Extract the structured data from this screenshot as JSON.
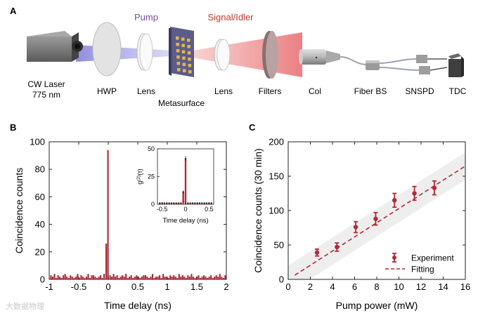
{
  "panels": {
    "a": "A",
    "b": "B",
    "c": "C"
  },
  "setup": {
    "pump": "Pump",
    "signal_idler": "Signal/Idler",
    "laser_line1": "CW Laser",
    "laser_line2": "775 nm",
    "hwp": "HWP",
    "lens1": "Lens",
    "metasurface": "Metasurface",
    "lens2": "Lens",
    "filters": "Filters",
    "col": "Col",
    "fiber_bs": "Fiber BS",
    "snspd": "SNSPD",
    "tdc": "TDC",
    "colors": {
      "pump_label": "#7a4a9c",
      "signal_label": "#c0392b",
      "pump_beam": "#a7a5e6",
      "signal_beam": "#f2a6a6"
    }
  },
  "watermark": "大数据物理",
  "chart_data": [
    {
      "type": "bar",
      "xlabel": "Time delay (ns)",
      "ylabel": "Coincidence counts",
      "xlim": [
        -1,
        2
      ],
      "ylim": [
        0,
        100
      ],
      "xticks": [
        "-1",
        "-0.5",
        "0",
        "0.5",
        "1",
        "1.5",
        "2"
      ],
      "yticks": [
        "0",
        "20",
        "40",
        "60",
        "80",
        "100"
      ],
      "bar_width": 0.03,
      "x": [
        -0.97,
        -0.94,
        -0.91,
        -0.88,
        -0.85,
        -0.82,
        -0.79,
        -0.76,
        -0.73,
        -0.7,
        -0.67,
        -0.64,
        -0.61,
        -0.58,
        -0.55,
        -0.52,
        -0.49,
        -0.46,
        -0.43,
        -0.4,
        -0.37,
        -0.34,
        -0.31,
        -0.28,
        -0.25,
        -0.22,
        -0.19,
        -0.16,
        -0.13,
        -0.1,
        -0.07,
        -0.035,
        -0.005,
        0.03,
        0.06,
        0.09,
        0.12,
        0.15,
        0.18,
        0.21,
        0.24,
        0.27,
        0.3,
        0.33,
        0.36,
        0.39,
        0.42,
        0.45,
        0.48,
        0.51,
        0.54,
        0.57,
        0.6,
        0.63,
        0.66,
        0.69,
        0.72,
        0.75,
        0.78,
        0.81,
        0.84,
        0.87,
        0.9,
        0.93,
        0.96,
        0.99,
        1.02,
        1.05,
        1.08,
        1.11,
        1.14,
        1.17,
        1.2,
        1.23,
        1.26,
        1.29,
        1.32,
        1.35,
        1.38,
        1.41,
        1.44,
        1.47,
        1.5,
        1.53,
        1.56,
        1.59,
        1.62,
        1.65,
        1.68,
        1.71,
        1.74,
        1.77,
        1.8,
        1.83,
        1.86,
        1.89,
        1.92,
        1.95,
        1.98
      ],
      "values": [
        3,
        2,
        4,
        1,
        3,
        2,
        1,
        3,
        4,
        2,
        1,
        3,
        2,
        1,
        2,
        4,
        1,
        3,
        2,
        1,
        2,
        4,
        1,
        3,
        3,
        2,
        1,
        2,
        3,
        1,
        4,
        26,
        94,
        3,
        2,
        4,
        2,
        3,
        1,
        2,
        3,
        2,
        4,
        1,
        2,
        3,
        1,
        2,
        3,
        2,
        1,
        2,
        3,
        3,
        2,
        1,
        2,
        4,
        1,
        2,
        2,
        3,
        1,
        4,
        2,
        2,
        1,
        3,
        2,
        3,
        2,
        1,
        4,
        2,
        3,
        2,
        1,
        3,
        2,
        4,
        2,
        1,
        2,
        3,
        1,
        2,
        3,
        2,
        1,
        2,
        3,
        1,
        2,
        3,
        2,
        4,
        2,
        1,
        3
      ],
      "inset": {
        "type": "bar",
        "xlabel": "Time delay (ns)",
        "ylabel_main": "g",
        "ylabel_sup": "(2)",
        "ylabel_tail": "(τ)",
        "xlim": [
          -0.6,
          0.6
        ],
        "ylim": [
          0,
          50
        ],
        "xticks": [
          "-0.5",
          "0",
          "0.5"
        ],
        "yticks": [
          "0",
          "25",
          "50"
        ],
        "x": [
          -0.55,
          -0.5,
          -0.45,
          -0.4,
          -0.35,
          -0.3,
          -0.25,
          -0.2,
          -0.15,
          -0.1,
          -0.05,
          0,
          0.05,
          0.1,
          0.15,
          0.2,
          0.25,
          0.3,
          0.35,
          0.4,
          0.45,
          0.5,
          0.55
        ],
        "values": [
          1,
          1,
          1,
          1,
          1,
          1,
          1,
          1,
          1,
          1,
          11,
          41,
          1,
          1,
          1,
          1,
          1,
          1,
          1,
          1,
          1,
          1,
          1
        ],
        "errors": [
          0.5,
          0.5,
          0.5,
          0.5,
          0.5,
          0.5,
          0.5,
          0.5,
          0.5,
          0.5,
          1.5,
          2.5,
          0.5,
          0.5,
          0.5,
          0.5,
          0.5,
          0.5,
          0.5,
          0.5,
          0.5,
          0.5,
          0.5
        ]
      }
    },
    {
      "type": "scatter",
      "xlabel": "Pump power (mW)",
      "ylabel": "Coincidence counts (30 min)",
      "xlim": [
        0,
        16
      ],
      "ylim": [
        0,
        200
      ],
      "xticks": [
        "0",
        "2",
        "4",
        "6",
        "8",
        "10",
        "12",
        "14",
        "16"
      ],
      "yticks": [
        "0",
        "50",
        "100",
        "150",
        "200"
      ],
      "series": [
        {
          "name": "Experiment",
          "x": [
            2.6,
            4.4,
            6.1,
            7.9,
            9.6,
            11.4,
            13.2
          ],
          "y": [
            39,
            47,
            76,
            88,
            115,
            125,
            133
          ],
          "err": [
            5,
            6,
            8,
            9,
            10,
            10,
            10
          ]
        },
        {
          "name": "Fitting",
          "line": {
            "slope": 10.3,
            "intercept": 0
          },
          "band_halfwidth": 20
        }
      ],
      "legend": {
        "experiment": "Experiment",
        "fitting": "Fitting"
      },
      "colors": {
        "series": "#b02a37",
        "band": "#eeeeee"
      }
    }
  ]
}
